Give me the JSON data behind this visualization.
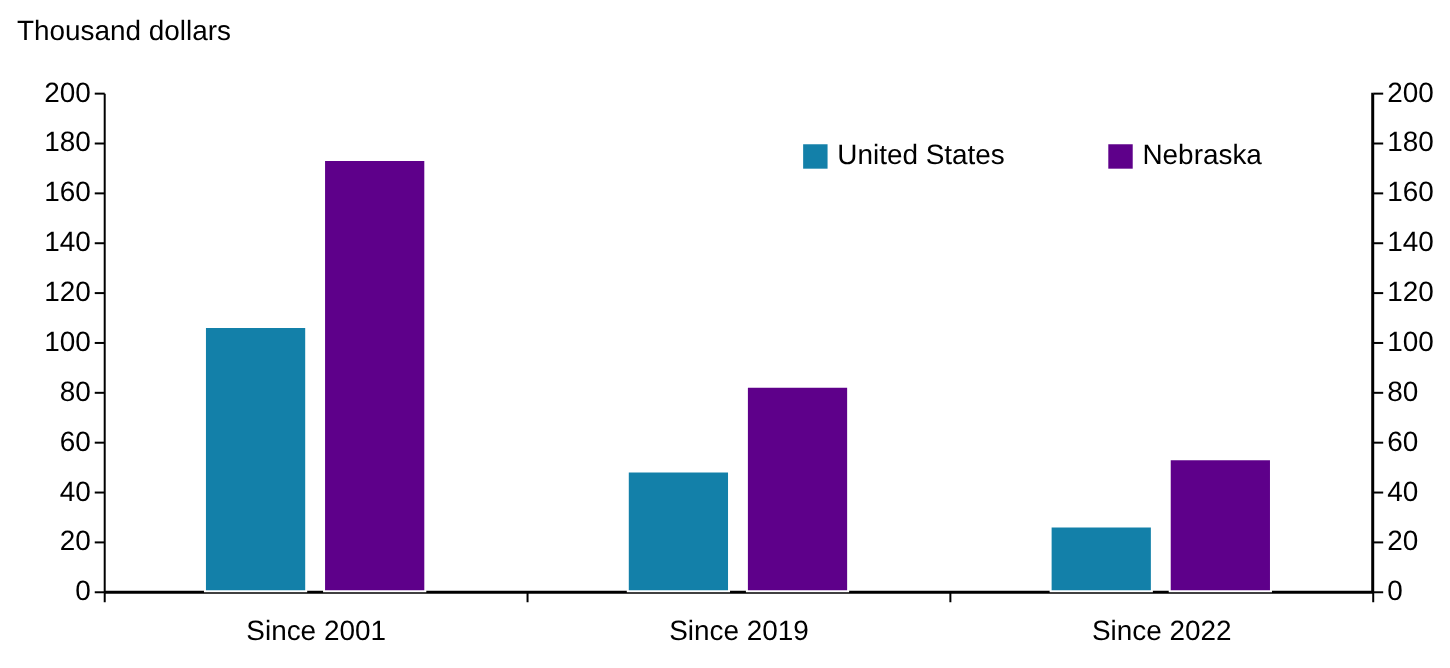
{
  "chart_data": {
    "type": "bar",
    "ylabel": "Thousand dollars",
    "categories": [
      "Since 2001",
      "Since 2019",
      "Since 2022"
    ],
    "series": [
      {
        "name": "United States",
        "color": "#1380a9",
        "values": [
          106,
          48,
          26
        ]
      },
      {
        "name": "Nebraska",
        "color": "#5e008a",
        "values": [
          173,
          82,
          53
        ]
      }
    ],
    "ylim": [
      0,
      200
    ],
    "yticks": [
      0,
      20,
      40,
      60,
      80,
      100,
      120,
      140,
      160,
      180,
      200
    ],
    "y2lim": [
      0,
      200
    ],
    "y2ticks": [
      0,
      20,
      40,
      60,
      80,
      100,
      120,
      140,
      160,
      180,
      200
    ],
    "grid": false,
    "legend": "top right"
  }
}
